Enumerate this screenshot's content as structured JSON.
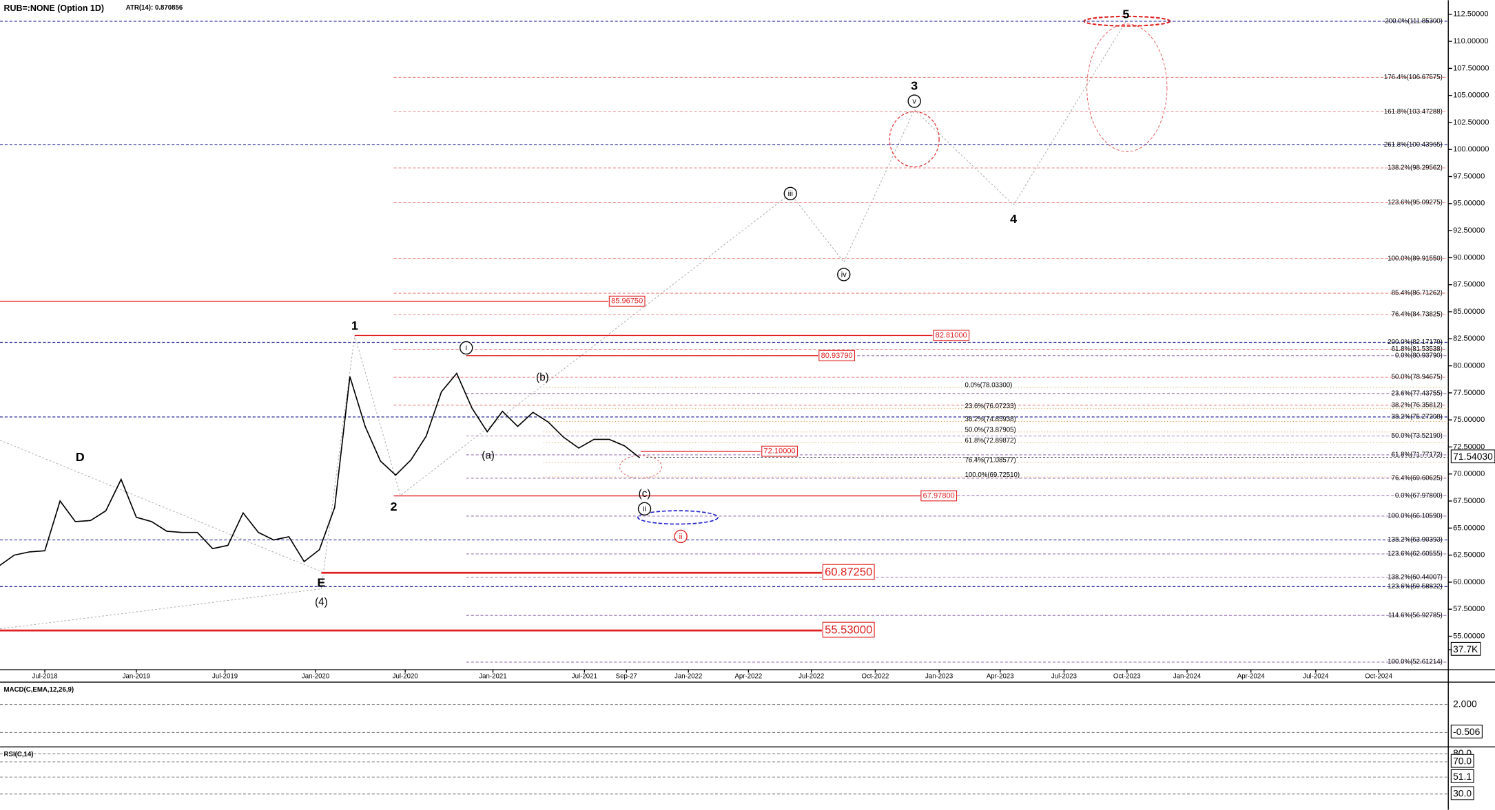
{
  "header": {
    "title": "RUB=:NONE (Option 1D)",
    "indicator": "ATR(14): 0.870856"
  },
  "chart_data": {
    "type": "line",
    "color": "#000000",
    "x": [
      "Apr-2018",
      "May-2018",
      "Jun-2018",
      "Jul-2018",
      "Aug-2018",
      "Sep-2018",
      "Oct-2018",
      "Nov-2018",
      "Dec-2018",
      "Jan-2019",
      "Feb-2019",
      "Mar-2019",
      "Apr-2019",
      "May-2019",
      "Jun-2019",
      "Jul-2019",
      "Aug-2019",
      "Sep-2019",
      "Oct-2019",
      "Nov-2019",
      "Dec-2019",
      "Jan-2020",
      "Feb-2020",
      "Mar-2020",
      "Apr-2020",
      "May-2020",
      "Jun-2020",
      "Jul-2020",
      "Aug-2020",
      "Sep-2020",
      "Oct-2020",
      "Nov-2020",
      "Dec-2020",
      "Jan-2021",
      "Feb-2021",
      "Mar-2021",
      "Apr-2021",
      "May-2021",
      "Jun-2021",
      "Jul-2021",
      "Aug-2021",
      "Sep-2021",
      "Oct-2021"
    ],
    "values": [
      61.5,
      62.5,
      62.8,
      62.9,
      67.5,
      65.6,
      65.7,
      66.6,
      69.5,
      66.0,
      65.6,
      64.7,
      64.6,
      64.6,
      63.1,
      63.4,
      66.4,
      64.6,
      63.9,
      64.2,
      61.9,
      63.0,
      66.9,
      79.0,
      74.4,
      71.2,
      69.9,
      71.3,
      73.5,
      77.6,
      79.3,
      76.1,
      73.9,
      75.8,
      74.4,
      75.7,
      74.8,
      73.4,
      72.4,
      73.2,
      73.2,
      72.6,
      71.5
    ],
    "ylim": [
      51.9,
      113.8
    ],
    "yticks": [
      {
        "value": 55,
        "label": "55.00000"
      },
      {
        "value": 57.5,
        "label": "57.50000"
      },
      {
        "value": 60,
        "label": "60.00000"
      },
      {
        "value": 62.5,
        "label": "62.50000"
      },
      {
        "value": 65,
        "label": "65.00000"
      },
      {
        "value": 67.5,
        "label": "67.50000"
      },
      {
        "value": 70,
        "label": "70.00000"
      },
      {
        "value": 72.5,
        "label": "72.50000"
      },
      {
        "value": 75,
        "label": "75.00000"
      },
      {
        "value": 77.5,
        "label": "77.50000"
      },
      {
        "value": 80,
        "label": "80.00000"
      },
      {
        "value": 82.5,
        "label": "82.50000"
      },
      {
        "value": 85,
        "label": "85.00000"
      },
      {
        "value": 87.5,
        "label": "87.50000"
      },
      {
        "value": 90,
        "label": "90.00000"
      },
      {
        "value": 92.5,
        "label": "92.50000"
      },
      {
        "value": 95,
        "label": "95.00000"
      },
      {
        "value": 97.5,
        "label": "97.50000"
      },
      {
        "value": 100,
        "label": "100.00000"
      },
      {
        "value": 102.5,
        "label": "102.50000"
      },
      {
        "value": 105,
        "label": "105.00000"
      },
      {
        "value": 107.5,
        "label": "107.50000"
      },
      {
        "value": 110,
        "label": "110.00000"
      },
      {
        "value": 112.5,
        "label": "112.50000"
      }
    ],
    "x_labels": [
      "Jul-2018",
      "Jan-2019",
      "Jul-2019",
      "Jan-2020",
      "Jul-2020",
      "Jan-2021",
      "Jul-2021",
      "Sep-27",
      "Jan-2022",
      "Apr-2022",
      "Jul-2022",
      "Oct-2022",
      "Jan-2023",
      "Apr-2023",
      "Jul-2023",
      "Oct-2023",
      "Jan-2024",
      "Apr-2024",
      "Jul-2024",
      "Oct-2024"
    ],
    "current_price": {
      "value": 71.5403,
      "label": "71.54030"
    },
    "fib_levels": [
      {
        "label": "200.0%(111.85300)",
        "value": 111.853,
        "color": "#2b2b9a"
      },
      {
        "label": "176.4%(106.67575)",
        "value": 106.67575,
        "color": "#e06060"
      },
      {
        "label": "161.8%(103.47288)",
        "value": 103.47288,
        "color": "#e06060"
      },
      {
        "label": "261.8%(100.43965)",
        "value": 100.43965,
        "color": "#2b2b9a"
      },
      {
        "label": "138.2%(98.29562)",
        "value": 98.29562,
        "color": "#e06060"
      },
      {
        "label": "123.6%(95.09275)",
        "value": 95.09275,
        "color": "#e06060"
      },
      {
        "label": "100.0%(89.91550)",
        "value": 89.9155,
        "color": "#e06060"
      },
      {
        "label": "85.4%(86.71262)",
        "value": 86.71262,
        "color": "#e06060"
      },
      {
        "label": "76.4%(84.73825)",
        "value": 84.73825,
        "color": "#e06060"
      },
      {
        "label": "200.0%(82.17179)",
        "value": 82.17179,
        "color": "#2b2b9a"
      },
      {
        "label": "61.8%(81.53538)",
        "value": 81.53538,
        "color": "#e06060"
      },
      {
        "label": "0.0%(80.93790)",
        "value": 80.9379,
        "color": "#8050a0"
      },
      {
        "label": "50.0%(78.94675)",
        "value": 78.94675,
        "color": "#e06060"
      },
      {
        "label": "23.6%(77.43755)",
        "value": 77.43755,
        "color": "#8050a0"
      },
      {
        "label": "38.2%(76.35812)",
        "value": 76.35812,
        "color": "#e06060"
      },
      {
        "label": "38.2%(75.27208)",
        "value": 75.27208,
        "color": "#2b2b9a"
      },
      {
        "label": "50.0%(73.52190)",
        "value": 73.5219,
        "color": "#8050a0"
      },
      {
        "label": "61.8%(71.77172)",
        "value": 71.77172,
        "color": "#8050a0"
      },
      {
        "label": "76.4%(69.60625)",
        "value": 69.60625,
        "color": "#8050a0"
      },
      {
        "label": "0.0%(67.97800)",
        "value": 67.978,
        "color": "#8050a0"
      },
      {
        "label": "100.0%(66.10590)",
        "value": 66.1059,
        "color": "#8050a0"
      },
      {
        "label": "138.2%(63.90393)",
        "value": 63.90393,
        "color": "#2b2b9a"
      },
      {
        "label": "123.6%(62.60555)",
        "value": 62.60555,
        "color": "#8050a0"
      },
      {
        "label": "138.2%(60.44007)",
        "value": 60.44007,
        "color": "#8050a0"
      },
      {
        "label": "123.6%(59.58822)",
        "value": 59.58822,
        "color": "#2b2b9a"
      },
      {
        "label": "114.6%(56.92785)",
        "value": 56.92785,
        "color": "#8050a0"
      },
      {
        "label": "100.0%(52.61214)",
        "value": 52.61214,
        "color": "#8050a0"
      }
    ],
    "retracements": [
      {
        "label": "0.0%(78.03300)",
        "value": 78.033
      },
      {
        "label": "23.6%(76.07233)",
        "value": 76.07233
      },
      {
        "label": "38.2%(74.85938)",
        "value": 74.85938
      },
      {
        "label": "50.0%(73.87905)",
        "value": 73.87905
      },
      {
        "label": "61.8%(72.89872)",
        "value": 72.89872
      },
      {
        "label": "76.4%(71.08577)",
        "value": 71.08577
      },
      {
        "label": "100.0%(69.72510)",
        "value": 69.7251
      }
    ],
    "price_boxes": [
      {
        "value": 85.9675,
        "label": "85.96750"
      },
      {
        "value": 82.81,
        "label": "82.81000"
      },
      {
        "value": 80.9379,
        "label": "80.93790"
      },
      {
        "value": 72.1,
        "label": "72.10000"
      },
      {
        "value": 67.978,
        "label": "67.97800"
      },
      {
        "value": 60.8725,
        "label": "60.87250"
      },
      {
        "value": 55.53,
        "label": "55.53000"
      }
    ],
    "waves": [
      {
        "label": "1"
      },
      {
        "label": "2"
      },
      {
        "label": "D"
      },
      {
        "label": "E"
      },
      {
        "label": "(4)"
      },
      {
        "label": "3"
      },
      {
        "label": "4"
      },
      {
        "label": "5"
      },
      {
        "label": "i",
        "circled": true
      },
      {
        "label": "ii",
        "circled": true
      },
      {
        "label": "ii",
        "circled": true,
        "color": "#e02020"
      },
      {
        "label": "iii",
        "circled": true
      },
      {
        "label": "iv",
        "circled": true
      },
      {
        "label": "v",
        "circled": true
      },
      {
        "label": "(a)"
      },
      {
        "label": "(b)"
      },
      {
        "label": "(c)"
      }
    ],
    "volume_tick": {
      "value": 37700,
      "label": "37.7K"
    }
  },
  "macd": {
    "title": "MACD(C,EMA,12,26,9)",
    "ylim": [
      -1.8,
      4.0
    ],
    "yticks": [
      {
        "value": 2,
        "label": "2.000"
      },
      {
        "value": -0.506,
        "label": "-0.506"
      }
    ]
  },
  "rsi": {
    "title": "RSI(C,14)",
    "ylim": [
      10.5,
      88.5
    ],
    "yticks": [
      {
        "value": 80,
        "label": "80.0"
      },
      {
        "value": 70,
        "label": "70.0"
      },
      {
        "value": 51.1,
        "label": "51.1"
      },
      {
        "value": 30,
        "label": "30.0"
      }
    ]
  }
}
